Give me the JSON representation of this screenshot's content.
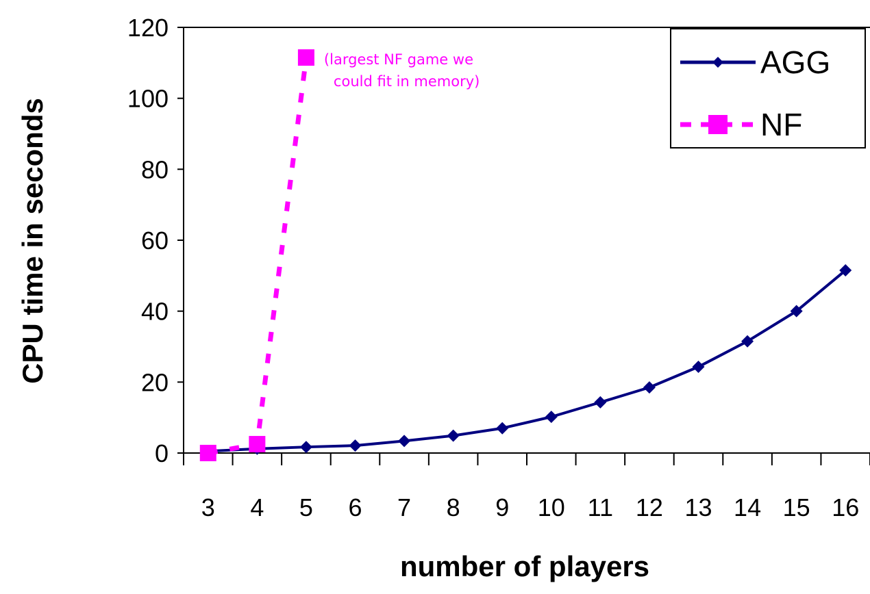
{
  "chart_data": {
    "type": "line",
    "xlabel": "number of players",
    "ylabel": "CPU time in seconds",
    "x": [
      3,
      4,
      5,
      6,
      7,
      8,
      9,
      10,
      11,
      12,
      13,
      14,
      15,
      16
    ],
    "ylim": [
      0,
      120
    ],
    "yticks": [
      0,
      20,
      40,
      60,
      80,
      100,
      120
    ],
    "grid": false,
    "legend_position": "top-right",
    "series": [
      {
        "name": "AGG",
        "color": "#000080",
        "line_style": "solid",
        "marker": "diamond",
        "values": [
          0.5,
          1.2,
          1.7,
          2.1,
          3.4,
          4.9,
          7.0,
          10.2,
          14.3,
          18.5,
          24.3,
          31.5,
          40.0,
          51.5
        ]
      },
      {
        "name": "NF",
        "color": "#ff00ff",
        "line_style": "dotted",
        "marker": "square",
        "values": [
          0,
          2.5,
          111.5,
          null,
          null,
          null,
          null,
          null,
          null,
          null,
          null,
          null,
          null,
          null
        ]
      }
    ],
    "annotations": [
      {
        "text_lines": [
          "(largest NF game we",
          "could fit in memory)"
        ],
        "series": "NF",
        "x": 5,
        "y": 111.5
      }
    ]
  }
}
